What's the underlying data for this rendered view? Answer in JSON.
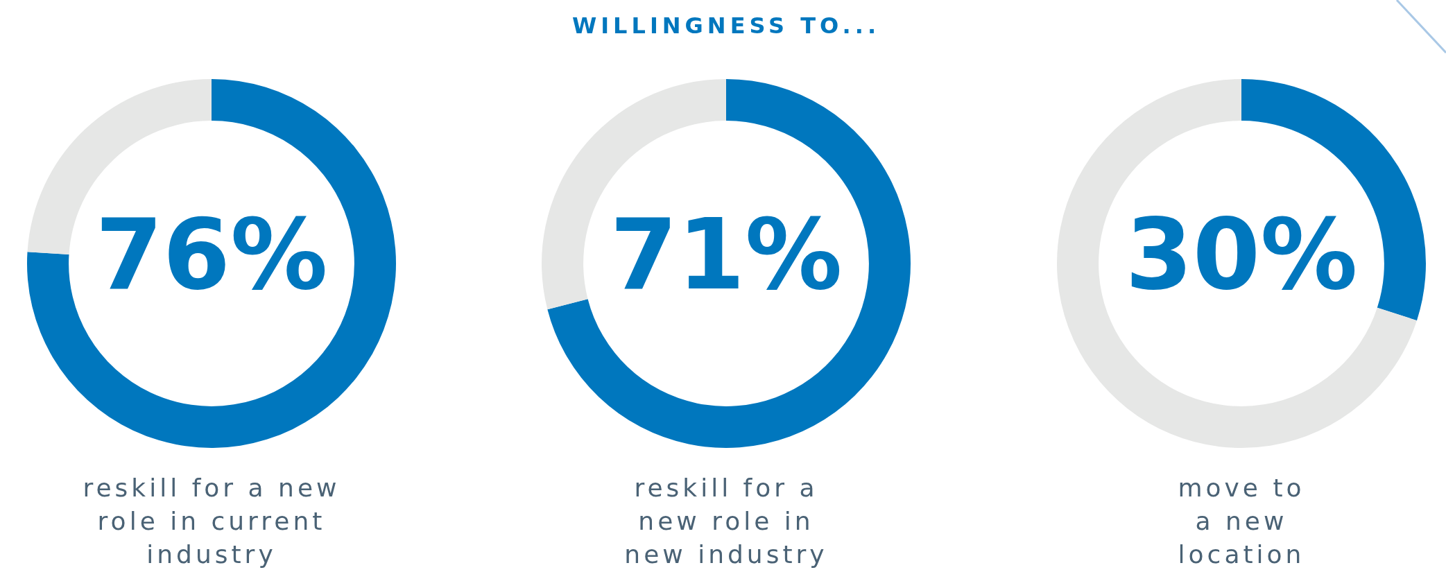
{
  "chart_data": [
    {
      "type": "donut",
      "categories": [
        null,
        null
      ],
      "values": [
        76,
        24
      ],
      "colors": [
        "#0077be",
        "#e6e7e6"
      ],
      "value_labels": [
        "76%",
        null
      ],
      "annotations": [
        "reskill for a new\nrole in current\nindustry"
      ]
    },
    {
      "type": "donut",
      "title": "WILLINGNESS TO...",
      "categories": [
        null,
        null
      ],
      "values": [
        71,
        29
      ],
      "colors": [
        "#0077be",
        "#e6e7e6"
      ],
      "value_labels": [
        "71%",
        null
      ],
      "annotations": [
        "reskill for a\nnew role in\nnew industry"
      ]
    },
    {
      "type": "donut",
      "categories": [
        null,
        null
      ],
      "values": [
        30,
        70
      ],
      "colors": [
        "#0077be",
        "#e6e7e6"
      ],
      "value_labels": [
        "30%",
        null
      ],
      "annotations": [
        "move to\na new\nlocation"
      ]
    }
  ]
}
